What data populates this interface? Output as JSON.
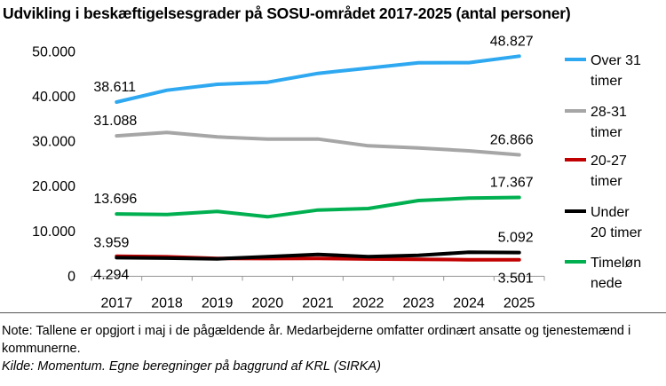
{
  "chart_data": {
    "type": "line",
    "title": "Udvikling i beskæftigelsesgrader på SOSU-området 2017-2025 (antal personer)",
    "categories": [
      "2017",
      "2018",
      "2019",
      "2020",
      "2021",
      "2022",
      "2023",
      "2024",
      "2025"
    ],
    "ylim": [
      0,
      50000
    ],
    "yticks": [
      0,
      10000,
      20000,
      30000,
      40000,
      50000
    ],
    "ytick_labels": [
      "0",
      "10.000",
      "20.000",
      "30.000",
      "40.000",
      "50.000"
    ],
    "grid": false,
    "legend_position": "right",
    "series": [
      {
        "name": "Over 31 timer",
        "color": "#2EA8F0",
        "values": [
          38611,
          41250,
          42560,
          43030,
          45000,
          46190,
          47370,
          47400,
          48827
        ],
        "labels": [
          "38.611",
          "48.827"
        ]
      },
      {
        "name": "28-31 timer",
        "color": "#A6A6A6",
        "values": [
          31088,
          31840,
          30850,
          30380,
          30380,
          28870,
          28400,
          27750,
          26866
        ],
        "labels": [
          "31.088",
          "26.866"
        ]
      },
      {
        "name": "20-27 timer",
        "color": "#C00000",
        "values": [
          4294,
          4150,
          3800,
          3750,
          3800,
          3650,
          3600,
          3500,
          3501
        ],
        "labels": [
          "4.294",
          "3.501"
        ]
      },
      {
        "name": "Under 20 timer",
        "color": "#000000",
        "values": [
          3959,
          3850,
          3700,
          4170,
          4690,
          4170,
          4490,
          5150,
          5092
        ],
        "labels": [
          "3.959",
          "5.092"
        ]
      },
      {
        "name": "Timelønnede",
        "color": "#00B050",
        "values": [
          13696,
          13580,
          14250,
          13060,
          14570,
          14900,
          16680,
          17210,
          17367
        ],
        "labels": [
          "13.696",
          "17.367"
        ]
      }
    ],
    "legend_lines": [
      [
        "Over 31",
        "timer"
      ],
      [
        "28-31",
        "timer"
      ],
      [
        "20-27",
        "timer"
      ],
      [
        "Under",
        "20 timer"
      ],
      [
        "Timeløn",
        "nede"
      ]
    ]
  },
  "notes": {
    "note": "Note: Tallene er opgjort i maj i de pågældende år. Medarbejderne omfatter ordinært ansatte og tjenestemænd i kommunerne.",
    "source": "Kilde: Momentum. Egne beregninger på baggrund af KRL (SIRKA)"
  }
}
